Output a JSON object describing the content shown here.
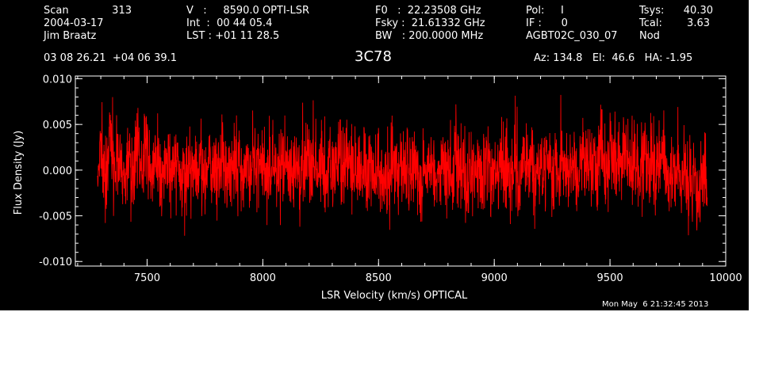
{
  "header": {
    "col1": {
      "line1_label": "Scan",
      "line1_value": "313",
      "line2": "2004-03-17",
      "line3": "Jim Braatz"
    },
    "col2": {
      "line1": "V   :     8590.0 OPTI-LSR",
      "line2": "Int  :  00 44 05.4",
      "line3": "LST : +01 11 28.5"
    },
    "col3": {
      "line1": "F0   :  22.23508 GHz",
      "line2": "Fsky :  21.61332 GHz",
      "line3": "BW   : 200.0000 MHz"
    },
    "col4": {
      "line1": "Pol:     I",
      "line2": "IF :      0",
      "line3": "AGBT02C_030_07"
    },
    "col5": {
      "line1_label": "Tsys:",
      "line1_value": "40.30",
      "line2_label": "Tcal:",
      "line2_value": "3.63",
      "line3": "Nod"
    },
    "coords": "03 08 26.21  +04 06 39.1",
    "source": "3C78",
    "azelha": "Az: 134.8   El:  46.6   HA: -1.95",
    "timestamp": "Mon May  6 21:32:45 2013"
  },
  "colors": {
    "background": "#000000",
    "axes": "#ffffff",
    "trace": "#ff0000"
  },
  "chart_data": {
    "type": "line",
    "title": "3C78",
    "xlabel": "LSR Velocity (km/s) OPTICAL",
    "ylabel": "Flux Density (Jy)",
    "xlim": [
      7190,
      10000
    ],
    "ylim": [
      -0.0105,
      0.0103
    ],
    "xticks": [
      7500,
      8000,
      8500,
      9000,
      9500,
      10000
    ],
    "xtick_labels": [
      "7500",
      "8000",
      "8500",
      "9000",
      "9500",
      "10000"
    ],
    "yticks": [
      -0.01,
      -0.005,
      0.0,
      0.005,
      0.01
    ],
    "ytick_labels": [
      "-0.010",
      "-0.005",
      "0.000",
      "0.005",
      "0.010"
    ],
    "grid": false,
    "series": [
      {
        "color": "#ff0000",
        "x_start": 7285,
        "x_end": 9920,
        "values": [
          -0.0018,
          0.0024,
          0.0011,
          -0.0006,
          0.0031,
          -0.0012,
          0.0008,
          0.0015,
          -0.0021,
          0.0004,
          0.0009,
          -0.0015,
          0.0022,
          0.0006,
          -0.0003,
          0.0027,
          0.0012,
          -0.0009,
          0.0018,
          0.0003,
          -0.0011,
          0.0014,
          0.0021,
          -0.0004,
          0.0007,
          0.0019,
          -0.0016,
          0.0011,
          0.0002,
          -0.0007,
          0.0005,
          -0.0012,
          0.0009,
          -0.0018,
          0.0003,
          0.0011,
          -0.0009,
          0.0006,
          -0.0002,
          0.0013,
          -0.0014,
          0.0001,
          0.0008,
          -0.0006,
          0.0012,
          -0.0011,
          0.0004,
          -0.0003,
          0.001,
          -0.0008,
          0.0002,
          0.0007,
          -0.0013,
          0.0005,
          -0.0001,
          0.0009,
          -0.001,
          0.0006,
          0.0003,
          -0.0005,
          0.0011,
          -0.0009,
          0.0004,
          0.0001,
          -0.0012,
          0.0008,
          -0.0004,
          0.001,
          -0.0007,
          0.0002,
          0.0006,
          -0.0011,
          0.0009,
          -0.0003,
          0.0005,
          0.0012,
          -0.0008,
          0.0003,
          -0.0006,
          0.001,
          -0.0002,
          0.0007,
          -0.001,
          0.0004,
          0.0001,
          0.0008,
          -0.0007,
          0.0011,
          -0.0004,
          0.0006,
          -0.0009,
          0.0002,
          0.0009,
          -0.0005,
          0.0012,
          -0.0001,
          0.0005,
          -0.0008,
          0.001,
          0.0003,
          -0.0006,
          0.0008,
          -0.0012,
          0.0004,
          0.0011,
          -0.0003,
          0.0007,
          -0.001,
          0.0002,
          0.0009,
          -0.0005,
          0.0013,
          -0.0008,
          0.0006,
          0.0001,
          -0.0011,
          0.001,
          -0.0002,
          0.0005,
          -0.0007,
          0.0012,
          0.0003,
          -0.0009,
          0.0008,
          -0.0004,
          0.0011,
          -0.0001,
          0.0006,
          -0.0012,
          0.0004,
          0.0009,
          -0.0006,
          0.0014,
          0.0002,
          -0.0008,
          0.001,
          -0.0003,
          0.0007,
          -0.001,
          0.0005,
          0.0012,
          -0.0002,
          0.0008,
          -0.0007,
          0.0015,
          0.0004,
          -0.0005,
          0.0011,
          0.0001,
          -0.0009,
          0.0013,
          0.0006,
          -0.0004,
          0.0016,
          0.0009,
          -0.0002,
          0.0018,
          0.0007,
          -0.0006,
          0.0012,
          0.002,
          0.0004,
          -0.0008,
          0.0017,
          0.0011,
          0.0002,
          0.0021,
          0.0008,
          -0.0003,
          0.0014,
          0.0019,
          0.0005,
          0.001,
          -0.0007,
          0.0016,
          0.0003,
          0.0012,
          -0.0011,
          0.0008,
          -0.0014,
          0.0002,
          -0.0019,
          0.0005,
          -0.0016,
          -0.0024,
          0.0001,
          -0.0031,
          -0.0012,
          0.0006,
          -0.0026
        ]
      }
    ]
  }
}
